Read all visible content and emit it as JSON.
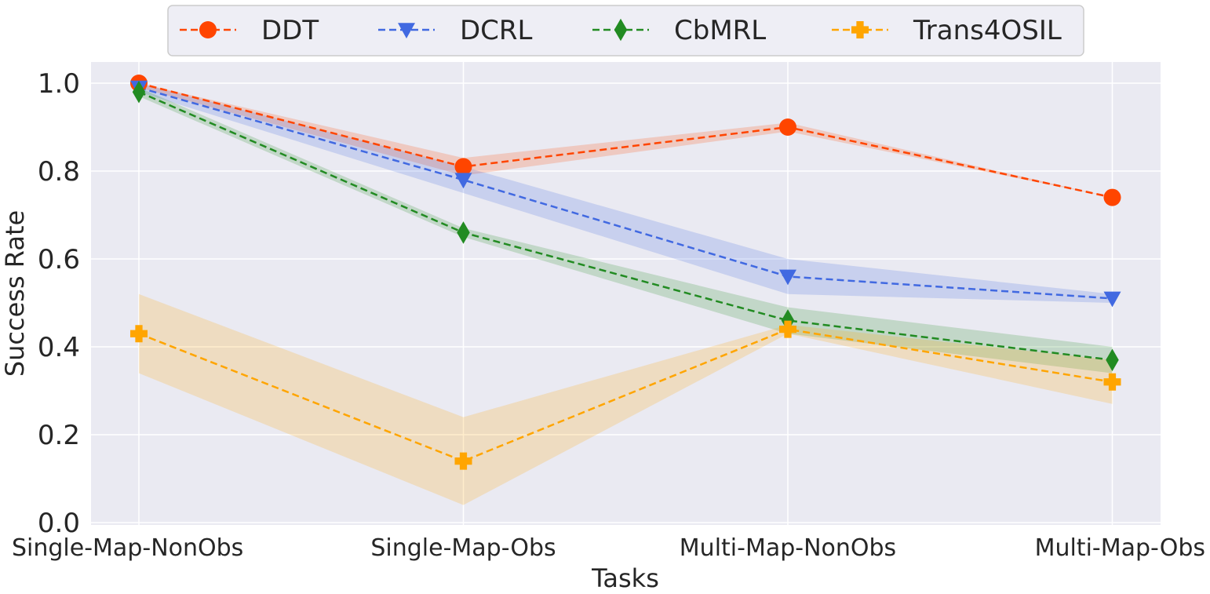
{
  "chart_data": {
    "type": "line",
    "xlabel": "Tasks",
    "ylabel": "Success Rate",
    "categories": [
      "Single-Map-NonObs",
      "Single-Map-Obs",
      "Multi-Map-NonObs",
      "Multi-Map-Obs"
    ],
    "ylim": [
      0.0,
      1.05
    ],
    "yticks": [
      "0.0",
      "0.2",
      "0.4",
      "0.6",
      "0.8",
      "1.0"
    ],
    "grid": true,
    "legend_position": "top-center",
    "series": [
      {
        "name": "DDT",
        "values": [
          1.0,
          0.81,
          0.9,
          0.74
        ],
        "lower": [
          0.99,
          0.79,
          0.89,
          0.74
        ],
        "upper": [
          1.0,
          0.83,
          0.91,
          0.74
        ],
        "color": "#ff4500",
        "marker": "circle"
      },
      {
        "name": "DCRL",
        "values": [
          0.99,
          0.78,
          0.56,
          0.51
        ],
        "lower": [
          0.98,
          0.75,
          0.52,
          0.5
        ],
        "upper": [
          1.0,
          0.81,
          0.6,
          0.52
        ],
        "color": "#4169e1",
        "marker": "triangle-down"
      },
      {
        "name": "CbMRL",
        "values": [
          0.98,
          0.66,
          0.46,
          0.37
        ],
        "lower": [
          0.97,
          0.65,
          0.43,
          0.34
        ],
        "upper": [
          0.99,
          0.67,
          0.49,
          0.4
        ],
        "color": "#228b22",
        "marker": "diamond"
      },
      {
        "name": "Trans4OSIL",
        "values": [
          0.43,
          0.14,
          0.44,
          0.32
        ],
        "lower": [
          0.34,
          0.04,
          0.43,
          0.27
        ],
        "upper": [
          0.52,
          0.24,
          0.45,
          0.37
        ],
        "color": "#ffa500",
        "marker": "plus"
      }
    ]
  }
}
